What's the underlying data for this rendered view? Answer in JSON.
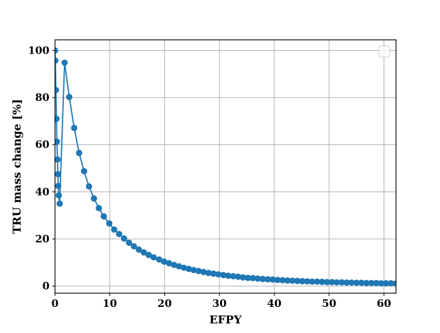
{
  "chart_data": {
    "type": "line",
    "title": "",
    "xlabel": "EFPY",
    "ylabel": "TRU mass change [%]",
    "xlim": [
      0,
      62.2
    ],
    "ylim": [
      -3,
      104.5
    ],
    "xticks": [
      0,
      10,
      20,
      30,
      40,
      50,
      60
    ],
    "yticks": [
      0,
      20,
      40,
      60,
      80,
      100
    ],
    "grid": true,
    "legend": {
      "placement": "top-right",
      "entries": []
    },
    "colors": {
      "series": "#1f77b4",
      "grid": "#b0b0b0",
      "axis": "#000000"
    },
    "series": [
      {
        "x": [
          0.0,
          0.06,
          0.17,
          0.26,
          0.35,
          0.45,
          0.53,
          0.6,
          0.7,
          0.85,
          1.75,
          2.6,
          3.5,
          4.4,
          5.3,
          6.2,
          7.1,
          8.0,
          8.9,
          9.9,
          10.8,
          11.7,
          12.6,
          13.5,
          14.4,
          15.3,
          16.2,
          17.1,
          18.0,
          19.0,
          19.9,
          20.8,
          21.7,
          22.6,
          23.5,
          24.4,
          25.3,
          26.2,
          27.1,
          28.0,
          28.9,
          29.8,
          30.7,
          31.6,
          32.5,
          33.4,
          34.3,
          35.2,
          36.1,
          37.0,
          37.9,
          38.8,
          39.7,
          40.6,
          41.5,
          42.4,
          43.3,
          44.2,
          45.1,
          46.0,
          46.9,
          47.8,
          48.7,
          49.6,
          50.5,
          51.4,
          52.3,
          53.2,
          54.1,
          55.0,
          55.9,
          56.8,
          57.7,
          58.6,
          59.5,
          60.4,
          61.3,
          62.2
        ],
        "y": [
          100,
          95.7,
          83.2,
          71.0,
          61.3,
          53.7,
          47.5,
          42.5,
          38.5,
          35.0,
          94.8,
          80.2,
          67.1,
          56.5,
          48.8,
          42.3,
          37.2,
          33.1,
          29.6,
          26.6,
          24.0,
          22.1,
          20.2,
          18.4,
          16.9,
          15.5,
          14.3,
          13.2,
          12.2,
          11.3,
          10.4,
          9.7,
          9.0,
          8.4,
          7.8,
          7.3,
          6.8,
          6.4,
          6.0,
          5.6,
          5.3,
          5.0,
          4.7,
          4.4,
          4.2,
          4.0,
          3.7,
          3.5,
          3.4,
          3.2,
          3.0,
          2.9,
          2.8,
          2.6,
          2.5,
          2.4,
          2.3,
          2.2,
          2.1,
          2.0,
          1.9,
          1.9,
          1.8,
          1.7,
          1.7,
          1.6,
          1.6,
          1.5,
          1.5,
          1.4,
          1.4,
          1.3,
          1.3,
          1.3,
          1.2,
          1.2,
          1.2,
          1.1
        ]
      }
    ]
  }
}
